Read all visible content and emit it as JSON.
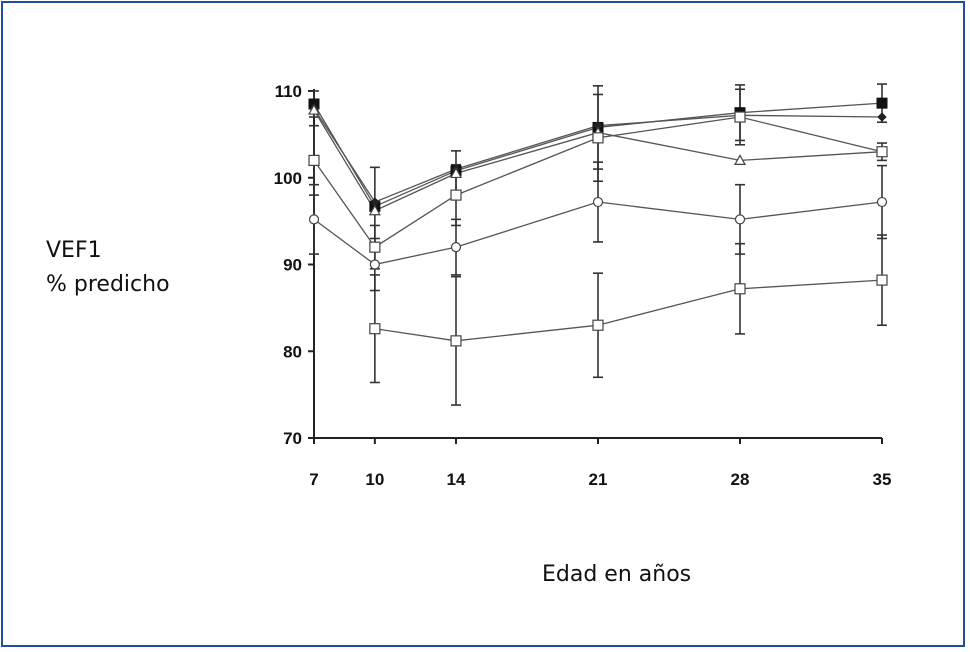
{
  "chart_data": {
    "type": "line",
    "title": "",
    "xlabel": "Edad en años",
    "ylabel_lines": [
      "VEF1",
      "% predicho"
    ],
    "x": [
      7,
      10,
      14,
      21,
      28,
      35
    ],
    "x_tick_labels": [
      "7",
      "10",
      "14",
      "21",
      "28",
      "35"
    ],
    "ylim": [
      70,
      110
    ],
    "y_ticks": [
      70,
      80,
      90,
      100,
      110
    ],
    "y_tick_labels": [
      "70",
      "80",
      "90",
      "100",
      "110"
    ],
    "grid": false,
    "legend": "none",
    "series": [
      {
        "marker": "filled-square",
        "values": [
          108.5,
          96.7,
          100.8,
          105.8,
          107.5,
          108.6
        ],
        "err": [
          1.5,
          4.5,
          2.3,
          4.8,
          3.2,
          2.2
        ]
      },
      {
        "marker": "filled-diamond",
        "values": [
          108.0,
          97.2,
          101.0,
          106.0,
          107.2,
          107.0
        ],
        "err": [
          0,
          0,
          0,
          0,
          0,
          0
        ]
      },
      {
        "marker": "open-triangle",
        "values": [
          107.8,
          96.2,
          100.5,
          105.2,
          102.0,
          103.0
        ],
        "err": [
          0,
          0,
          0,
          0,
          0,
          0
        ]
      },
      {
        "marker": "open-square",
        "values": [
          102.0,
          92.0,
          98.0,
          104.6,
          107.0,
          103.0
        ],
        "err": [
          4.0,
          2.5,
          3.5,
          5.0,
          3.2,
          1.0
        ]
      },
      {
        "marker": "open-circle",
        "values": [
          95.2,
          90.0,
          92.0,
          97.2,
          95.2,
          97.2
        ],
        "err": [
          4.0,
          3.0,
          3.2,
          4.6,
          4.0,
          4.2
        ]
      },
      {
        "marker": "open-square",
        "values": [
          null,
          82.6,
          81.2,
          83.0,
          87.2,
          88.2
        ],
        "err": [
          0,
          6.2,
          7.4,
          6.0,
          5.2,
          5.2
        ]
      }
    ]
  }
}
